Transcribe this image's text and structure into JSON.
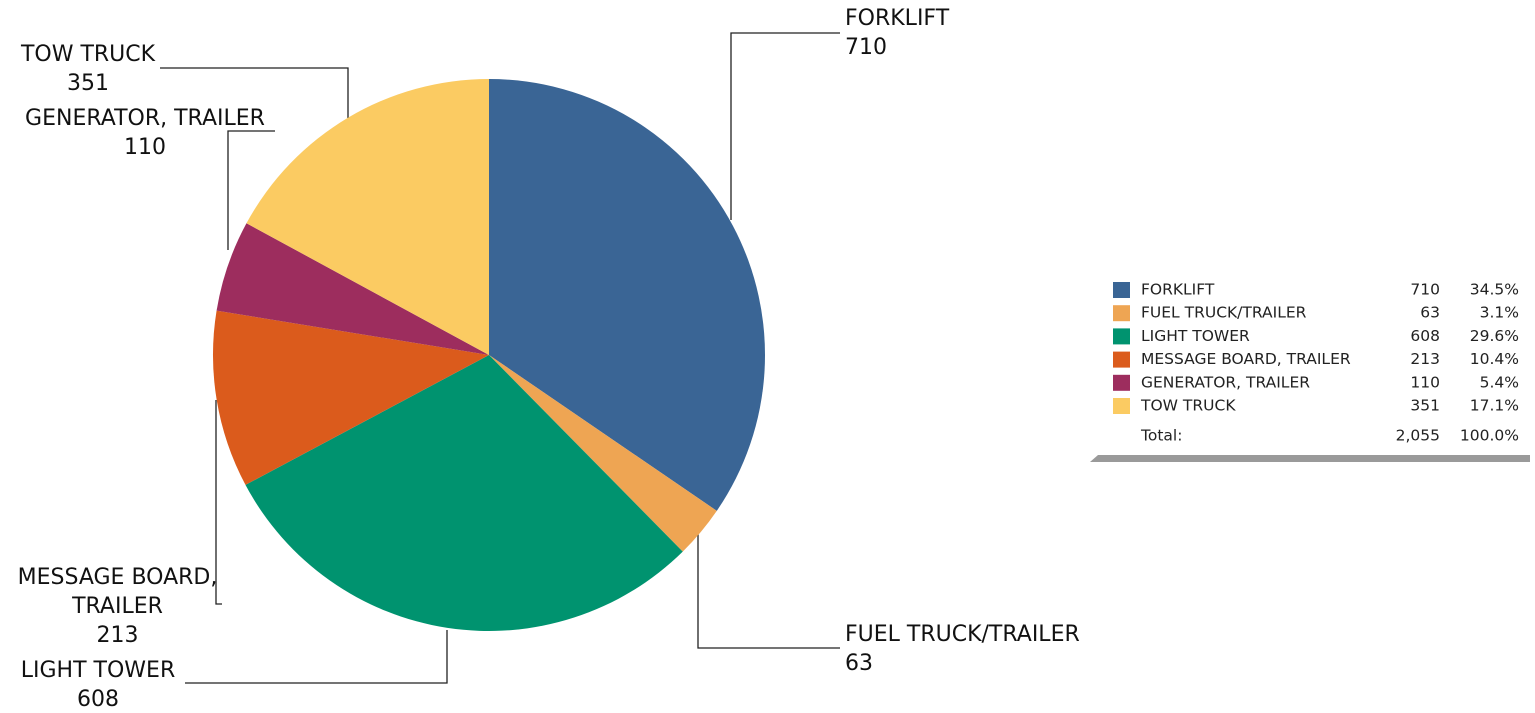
{
  "chart_data": {
    "type": "pie",
    "categories": [
      "FORKLIFT",
      "FUEL TRUCK/TRAILER",
      "LIGHT TOWER",
      "MESSAGE BOARD, TRAILER",
      "GENERATOR, TRAILER",
      "TOW TRUCK"
    ],
    "values": [
      710,
      63,
      608,
      213,
      110,
      351
    ],
    "colors": [
      "#3a6595",
      "#eea553",
      "#00936f",
      "#db5b1c",
      "#9d2d5e",
      "#fbcb62"
    ],
    "percent_labels": [
      "34.5%",
      "3.1%",
      "29.6%",
      "10.4%",
      "5.4%",
      "17.1%"
    ],
    "total_label": "Total:",
    "total": "2,055",
    "total_percent": "100.0%"
  }
}
